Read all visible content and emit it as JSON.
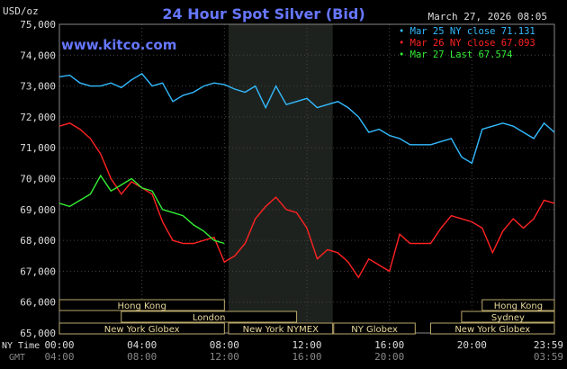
{
  "chart_data": {
    "type": "line",
    "title": "24 Hour Spot Silver (Bid)",
    "timestamp": "March 27, 2026 08:05",
    "watermark": "www.kitco.com",
    "currency_label": "USD/oz",
    "ylim": [
      65000,
      75000
    ],
    "y_ticks": [
      "75,000",
      "74,000",
      "73,000",
      "72,000",
      "71,000",
      "70,000",
      "69,000",
      "68,000",
      "67,000",
      "66,000",
      "65,000"
    ],
    "x_ticks_ny": [
      "00:00",
      "04:00",
      "08:00",
      "12:00",
      "16:00",
      "20:00",
      "23:59"
    ],
    "x_ticks_gmt": [
      "04:00",
      "08:00",
      "12:00",
      "16:00",
      "20:00",
      "03:59"
    ],
    "x_axis_label_ny": "NY Time",
    "x_axis_label_gmt": "GMT",
    "legend": [
      {
        "label": "Mar 25 NY close 71.131",
        "color": "#33bbff"
      },
      {
        "label": "Mar 26 NY close 67.093",
        "color": "#ff2222"
      },
      {
        "label": "Mar 27 Last 67.574",
        "color": "#33ee33"
      }
    ],
    "sessions": [
      {
        "label": "Hong Kong",
        "start": 0,
        "end": 8,
        "row": 0
      },
      {
        "label": "London",
        "start": 3,
        "end": 11.5,
        "row": 1
      },
      {
        "label": "New York Globex",
        "start": 0,
        "end": 8,
        "row": 2
      },
      {
        "label": "New York NYMEX",
        "start": 8.2,
        "end": 13.25,
        "row": 2
      },
      {
        "label": "NY Globex",
        "start": 13.3,
        "end": 17.25,
        "row": 2
      },
      {
        "label": "Hong Kong",
        "start": 20.5,
        "end": 24,
        "row": 0
      },
      {
        "label": "Sydney",
        "start": 19.5,
        "end": 24,
        "row": 1
      },
      {
        "label": "New York Globex",
        "start": 18,
        "end": 24,
        "row": 2
      }
    ],
    "shaded_hours": [
      8.2,
      13.25
    ],
    "series": [
      {
        "name": "Mar 25 NY close 71.131",
        "color": "#33bbff",
        "x": [
          0,
          0.5,
          1,
          1.5,
          2,
          2.5,
          3,
          3.5,
          4,
          4.5,
          5,
          5.5,
          6,
          6.5,
          7,
          7.5,
          8,
          8.5,
          9,
          9.5,
          10,
          10.5,
          11,
          11.5,
          12,
          12.5,
          13,
          13.5,
          14,
          14.5,
          15,
          15.5,
          16,
          16.5,
          17,
          17.5,
          18,
          18.5,
          19,
          19.5,
          20,
          20.5,
          21,
          21.5,
          22,
          22.5,
          23,
          23.5,
          24
        ],
        "y": [
          73300,
          73350,
          73100,
          73000,
          73000,
          73100,
          72950,
          73200,
          73400,
          73000,
          73100,
          72500,
          72700,
          72800,
          73000,
          73100,
          73050,
          72900,
          72800,
          73000,
          72300,
          73000,
          72400,
          72500,
          72600,
          72300,
          72400,
          72500,
          72300,
          72000,
          71500,
          71600,
          71400,
          71300,
          71100,
          71100,
          71100,
          71200,
          71300,
          70700,
          70500,
          71600,
          71700,
          71800,
          71700,
          71500,
          71300,
          71800,
          71500
        ]
      },
      {
        "name": "Mar 26 NY close 67.093",
        "color": "#ff2222",
        "x": [
          0,
          0.5,
          1,
          1.5,
          2,
          2.5,
          3,
          3.5,
          4,
          4.5,
          5,
          5.5,
          6,
          6.5,
          7,
          7.5,
          8,
          8.5,
          9,
          9.5,
          10,
          10.5,
          11,
          11.5,
          12,
          12.5,
          13,
          13.5,
          14,
          14.5,
          15,
          15.5,
          16,
          16.5,
          17,
          17.5,
          18,
          18.5,
          19,
          19.5,
          20,
          20.5,
          21,
          21.5,
          22,
          22.5,
          23,
          23.5,
          24
        ],
        "y": [
          71700,
          71800,
          71600,
          71300,
          70800,
          70000,
          69500,
          69900,
          69700,
          69500,
          68600,
          68000,
          67900,
          67900,
          68000,
          68100,
          67300,
          67500,
          67900,
          68700,
          69100,
          69400,
          69000,
          68900,
          68400,
          67400,
          67700,
          67600,
          67300,
          66800,
          67400,
          67200,
          67000,
          68200,
          67900,
          67900,
          67900,
          68400,
          68800,
          68700,
          68600,
          68400,
          67600,
          68300,
          68700,
          68400,
          68700,
          69300,
          69200
        ]
      },
      {
        "name": "Mar 27 Last 67.574",
        "color": "#33ee33",
        "x": [
          0,
          0.5,
          1,
          1.5,
          2,
          2.5,
          3,
          3.5,
          4,
          4.5,
          5,
          5.5,
          6,
          6.5,
          7,
          7.5,
          8
        ],
        "y": [
          69200,
          69100,
          69300,
          69500,
          70100,
          69600,
          69800,
          70000,
          69700,
          69600,
          69000,
          68900,
          68800,
          68500,
          68300,
          68000,
          67900
        ]
      }
    ]
  }
}
